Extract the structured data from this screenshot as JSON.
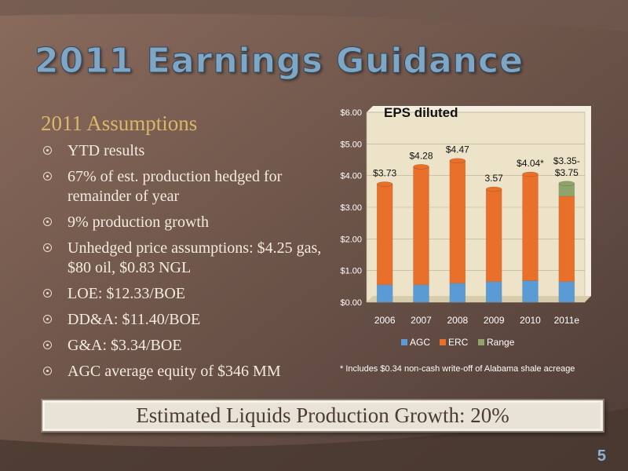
{
  "slide": {
    "title": "2011 Earnings Guidance",
    "assumptions_heading": "2011 Assumptions",
    "bullets": [
      "YTD results",
      "67% of est. production hedged for remainder of year",
      "9% production growth",
      "Unhedged price assumptions: $4.25 gas, $80 oil, $0.83 NGL",
      "LOE: $12.33/BOE",
      "DD&A: $11.40/BOE",
      "G&A: $3.34/BOE",
      "AGC average equity of $346 MM"
    ],
    "footnote": "* Includes $0.34 non-cash write-off of Alabama shale acreage",
    "banner": "Estimated Liquids Production Growth: 20%",
    "page_number": "5"
  },
  "colors": {
    "background": "#5e4a43",
    "agc": "#5b9bd5",
    "erc": "#e8702a",
    "range": "#8ea46a",
    "plot_background": "#ece3c8"
  },
  "chart_data": {
    "type": "bar",
    "stacked": true,
    "title": "EPS diluted",
    "categories": [
      "2006",
      "2007",
      "2008",
      "2009",
      "2010",
      "2011e"
    ],
    "series": [
      {
        "name": "AGC",
        "values": [
          0.55,
          0.55,
          0.6,
          0.65,
          0.68,
          0.65
        ]
      },
      {
        "name": "ERC",
        "values": [
          3.18,
          3.73,
          3.87,
          2.92,
          3.36,
          2.7
        ]
      },
      {
        "name": "Range",
        "values": [
          0,
          0,
          0,
          0,
          0,
          0.4
        ]
      }
    ],
    "data_labels": [
      "$3.73",
      "$4.28",
      "$4.47",
      "3.57",
      "$4.04*",
      "$3.35-\n$3.75"
    ],
    "ylim": [
      0,
      6
    ],
    "yticks": [
      "$0.00",
      "$1.00",
      "$2.00",
      "$3.00",
      "$4.00",
      "$5.00",
      "$6.00"
    ],
    "grid": true,
    "legend": "bottom"
  }
}
